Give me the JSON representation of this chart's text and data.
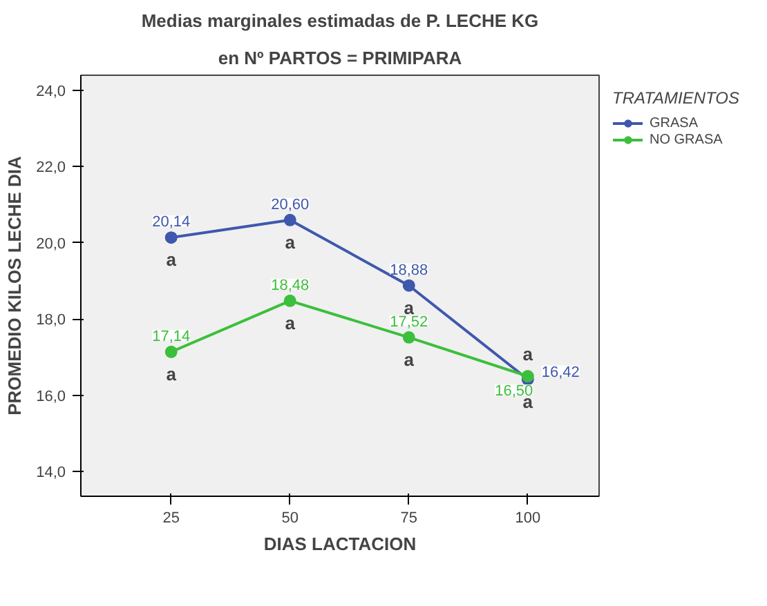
{
  "chart_data": {
    "type": "line",
    "title": "Medias marginales estimadas de P. LECHE KG",
    "subtitle": "en Nº PARTOS = PRIMIPARA",
    "xlabel": "DIAS LACTACION",
    "ylabel": "PROMEDIO KILOS LECHE DIA",
    "legend_title": "TRATAMIENTOS",
    "x": [
      25,
      50,
      75,
      100
    ],
    "series": [
      {
        "name": "GRASA",
        "color": "#3f58ad",
        "values": [
          20.14,
          20.6,
          18.88,
          16.42
        ],
        "value_labels": [
          "20,14",
          "20,60",
          "18,88",
          "16,42"
        ]
      },
      {
        "name": "NO GRASA",
        "color": "#3cbf3c",
        "values": [
          17.14,
          18.48,
          17.52,
          16.5
        ],
        "value_labels": [
          "17,14",
          "18,48",
          "17,52",
          "16,50"
        ]
      }
    ],
    "xlim": [
      6,
      115
    ],
    "ylim": [
      13.35,
      24.4
    ],
    "xticks": [
      25,
      50,
      75,
      100
    ],
    "yticks": [
      {
        "value": 14,
        "label": "14,0"
      },
      {
        "value": 16,
        "label": "16,0"
      },
      {
        "value": 18,
        "label": "18,0"
      },
      {
        "value": 20,
        "label": "20,0"
      },
      {
        "value": 22,
        "label": "22,0"
      },
      {
        "value": 24,
        "label": "24,0"
      }
    ],
    "annotations": [
      {
        "text": "a",
        "x": 25,
        "y": 20.14
      },
      {
        "text": "a",
        "x": 50,
        "y": 20.6
      },
      {
        "text": "a",
        "x": 75,
        "y": 18.88
      },
      {
        "text": "a",
        "x": 100,
        "y": 16.42
      },
      {
        "text": "a",
        "x": 25,
        "y": 17.14
      },
      {
        "text": "a",
        "x": 50,
        "y": 18.48
      },
      {
        "text": "a",
        "x": 75,
        "y": 17.52
      },
      {
        "text": "a",
        "x": 100,
        "y": 16.5
      }
    ],
    "grid": false,
    "legend": "right",
    "marker": "circle",
    "line_style": "solid"
  }
}
